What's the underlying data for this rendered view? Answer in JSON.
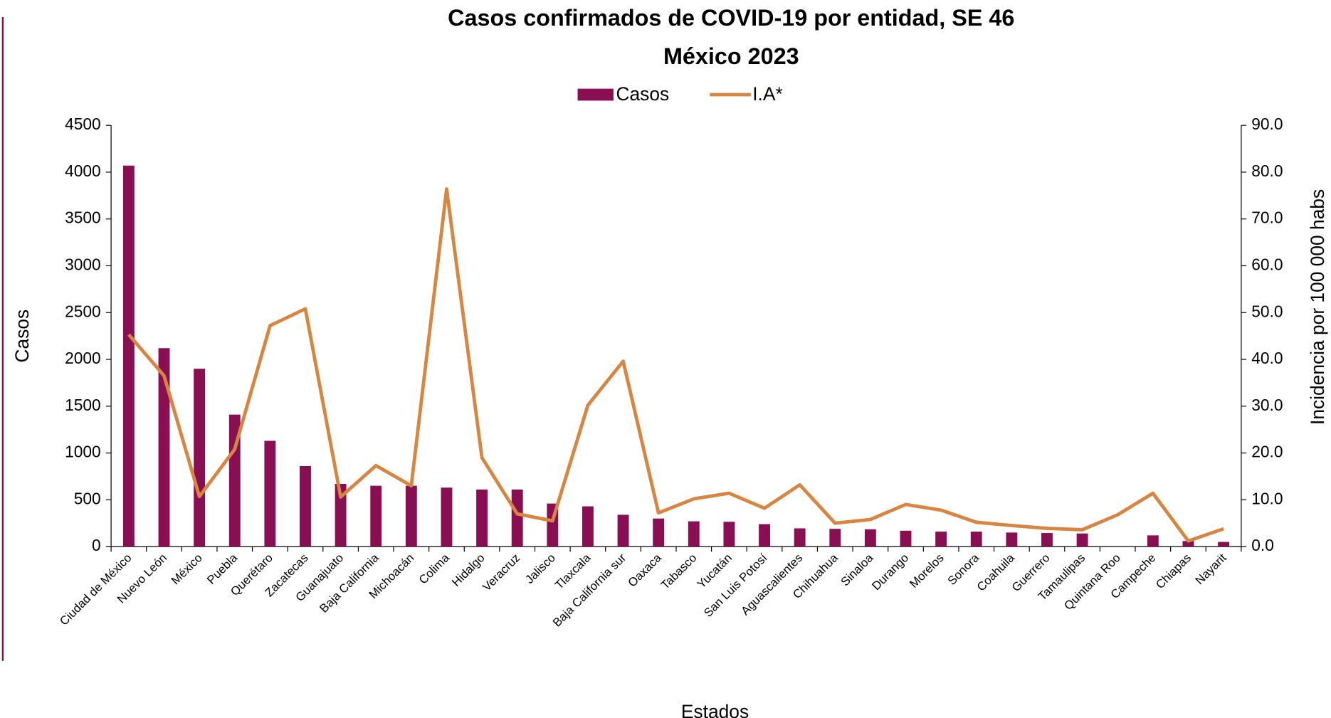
{
  "chart_data": {
    "type": "bar-line",
    "title": "Casos confirmados de COVID-19 por entidad, SE 46",
    "subtitle": "México 2023",
    "x_label": "Estados",
    "y_label": "Casos",
    "y2_label": "Incidencia por 100 000 habs",
    "categories": [
      "Ciudad de México",
      "Nuevo León",
      "México",
      "Puebla",
      "Querétaro",
      "Zacatecas",
      "Guanajuato",
      "Baja California",
      "Michoacán",
      "Colima",
      "Hidalgo",
      "Veracruz",
      "Jalisco",
      "Tlaxcala",
      "Baja California sur",
      "Oaxaca",
      "Tabasco",
      "Yucatán",
      "San Luis Potosí",
      "Aguascalientes",
      "Chihuahua",
      "Sinaloa",
      "Durango",
      "Morelos",
      "Sonora",
      "Coahuila",
      "Guerrero",
      "Tamaulipas",
      "Quintana Roo",
      "Campeche",
      "Chiapas",
      "Nayarit"
    ],
    "series": [
      {
        "name": "Casos",
        "type": "bar",
        "color": "#8a0f52",
        "values": [
          4070,
          2120,
          1900,
          1410,
          1130,
          860,
          670,
          650,
          650,
          630,
          610,
          610,
          460,
          430,
          340,
          300,
          270,
          265,
          240,
          195,
          190,
          185,
          170,
          160,
          160,
          150,
          145,
          140,
          0,
          120,
          60,
          50
        ]
      },
      {
        "name": "I.A*",
        "type": "line",
        "axis": "y2",
        "color": "#d9843f",
        "values": [
          45.3,
          36.5,
          10.7,
          20.8,
          47.2,
          50.8,
          10.6,
          17.3,
          13.0,
          76.4,
          19.0,
          7.0,
          5.5,
          30.2,
          39.6,
          7.2,
          10.2,
          11.4,
          8.2,
          13.2,
          5.0,
          5.8,
          9.0,
          7.8,
          5.2,
          4.5,
          3.9,
          3.6,
          6.8,
          11.4,
          1.2,
          3.8
        ]
      }
    ],
    "ylim": [
      0,
      4500
    ],
    "yticks": [
      0,
      500,
      1000,
      1500,
      2000,
      2500,
      3000,
      3500,
      4000,
      4500
    ],
    "y2lim": [
      0,
      90
    ],
    "y2ticks": [
      {
        "value": 0,
        "label": "0.0"
      },
      {
        "value": 10,
        "label": "10.0"
      },
      {
        "value": 20,
        "label": "20.0"
      },
      {
        "value": 30,
        "label": "30.0"
      },
      {
        "value": 40,
        "label": "40.0"
      },
      {
        "value": 50,
        "label": "50.0"
      },
      {
        "value": 60,
        "label": "60.0"
      },
      {
        "value": 70,
        "label": "70.0"
      },
      {
        "value": 80,
        "label": "80.0"
      },
      {
        "value": 90,
        "label": "90.0"
      }
    ],
    "legend": "top"
  }
}
